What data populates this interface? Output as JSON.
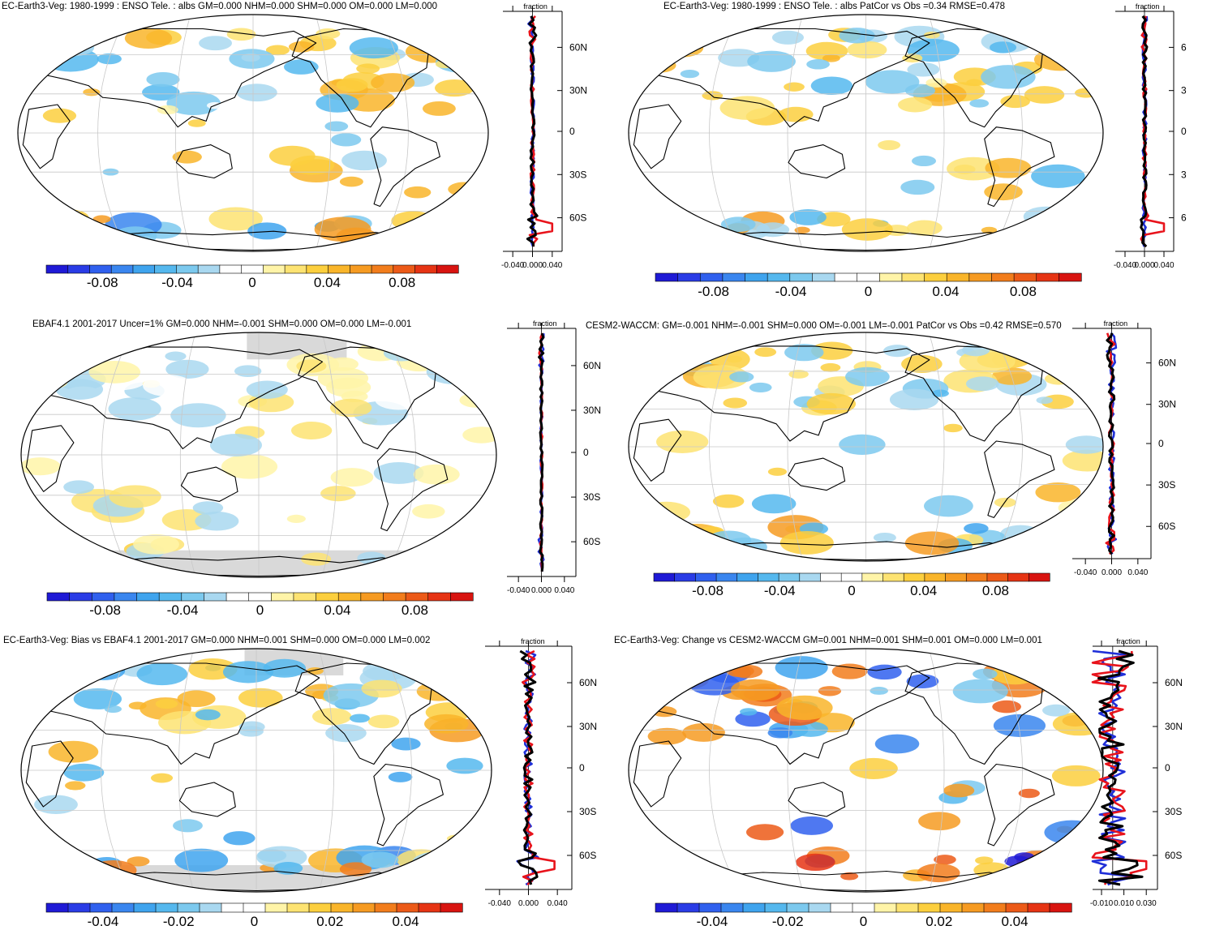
{
  "figure": {
    "background": "#ffffff"
  },
  "chart_data": [
    {
      "type": "heatmap",
      "panel": "top-left",
      "title": "EC-Earth3-Veg: 1980-1999 : ENSO Tele. : albs GM=0.000 NHM=0.000 SHM=0.000 OM=0.000 LM=0.000",
      "colorbar": {
        "ticks": [
          "-0.08",
          "-0.04",
          "0",
          "0.04",
          "0.08"
        ],
        "range": [
          -0.11,
          0.11
        ]
      },
      "profile": {
        "label": "fraction",
        "xticks": [
          "-0.040",
          "0.000",
          "0.040"
        ],
        "xlim": [
          -0.06,
          0.06
        ],
        "yticks": [
          "60N",
          "30N",
          "0",
          "30S",
          "60S"
        ],
        "series": [
          {
            "name": "black",
            "color": "#000000"
          },
          {
            "name": "red",
            "color": "#e8131b"
          },
          {
            "name": "blue",
            "color": "#1f2fd8"
          }
        ]
      }
    },
    {
      "type": "heatmap",
      "panel": "top-right",
      "title": "EC-Earth3-Veg: 1980-1999 : ENSO Tele. : albs PatCor vs Obs =0.34 RMSE=0.478",
      "colorbar": {
        "ticks": [
          "-0.08",
          "-0.04",
          "0",
          "0.04",
          "0.08"
        ],
        "range": [
          -0.11,
          0.11
        ]
      },
      "profile": {
        "label": "fraction",
        "xticks": [
          "-0.040",
          "0.000",
          "0.040"
        ],
        "xlim": [
          -0.06,
          0.06
        ],
        "yticks": [
          "6",
          "3",
          "0",
          "3",
          "6"
        ],
        "series": [
          {
            "name": "black",
            "color": "#000000"
          },
          {
            "name": "red",
            "color": "#e8131b"
          },
          {
            "name": "blue",
            "color": "#1f2fd8"
          }
        ]
      }
    },
    {
      "type": "heatmap",
      "panel": "middle-left",
      "title": "EBAF4.1 2001-2017 Uncer=1% GM=0.000 NHM=-0.001 SHM=0.000 OM=0.000 LM=-0.001",
      "colorbar": {
        "ticks": [
          "-0.08",
          "-0.04",
          "0",
          "0.04",
          "0.08"
        ],
        "range": [
          -0.11,
          0.11
        ]
      },
      "profile": {
        "label": "fraction",
        "xticks": [
          "-0.040",
          "0.000",
          "0.040"
        ],
        "xlim": [
          -0.06,
          0.06
        ],
        "yticks": [
          "60N",
          "30N",
          "0",
          "30S",
          "60S"
        ],
        "series": [
          {
            "name": "black",
            "color": "#000000"
          },
          {
            "name": "red",
            "color": "#e8131b"
          },
          {
            "name": "blue",
            "color": "#1f2fd8"
          }
        ]
      }
    },
    {
      "type": "heatmap",
      "panel": "middle-right",
      "title": "CESM2-WACCM: GM=-0.001 NHM=-0.001 SHM=0.000 OM=-0.001 LM=-0.001 PatCor vs Obs =0.42 RMSE=0.570",
      "colorbar": {
        "ticks": [
          "-0.08",
          "-0.04",
          "0",
          "0.04",
          "0.08"
        ],
        "range": [
          -0.11,
          0.11
        ]
      },
      "profile": {
        "label": "fraction",
        "xticks": [
          "-0.040",
          "0.000",
          "0.040"
        ],
        "xlim": [
          -0.06,
          0.06
        ],
        "yticks": [
          "60N",
          "30N",
          "0",
          "30S",
          "60S"
        ],
        "series": [
          {
            "name": "black",
            "color": "#000000"
          },
          {
            "name": "red",
            "color": "#e8131b"
          },
          {
            "name": "blue",
            "color": "#1f2fd8"
          }
        ]
      }
    },
    {
      "type": "heatmap",
      "panel": "bottom-left",
      "title": "EC-Earth3-Veg: Bias vs EBAF4.1 2001-2017 GM=0.000 NHM=0.001 SHM=0.000 OM=0.000 LM=0.002",
      "colorbar": {
        "ticks": [
          "-0.04",
          "-0.02",
          "0",
          "0.02",
          "0.04"
        ],
        "range": [
          -0.055,
          0.055
        ]
      },
      "profile": {
        "label": "fraction",
        "xticks": [
          "-0.040",
          "0.000",
          "0.040"
        ],
        "xlim": [
          -0.06,
          0.06
        ],
        "yticks": [
          "60N",
          "30N",
          "0",
          "30S",
          "60S"
        ],
        "series": [
          {
            "name": "black",
            "color": "#000000"
          },
          {
            "name": "red",
            "color": "#e8131b"
          },
          {
            "name": "blue",
            "color": "#1f2fd8"
          }
        ]
      }
    },
    {
      "type": "heatmap",
      "panel": "bottom-right",
      "title": "EC-Earth3-Veg: Change vs CESM2-WACCM GM=0.001 NHM=0.001 SHM=0.001 OM=0.000 LM=0.001",
      "colorbar": {
        "ticks": [
          "-0.04",
          "-0.02",
          "0",
          "0.02",
          "0.04"
        ],
        "range": [
          -0.055,
          0.055
        ]
      },
      "profile": {
        "label": "fraction",
        "xticks": [
          "-0.010",
          "0.010",
          "0.030"
        ],
        "xlim": [
          -0.018,
          0.04
        ],
        "yticks": [
          "60N",
          "30N",
          "0",
          "30S",
          "60S"
        ],
        "series": [
          {
            "name": "black",
            "color": "#000000"
          },
          {
            "name": "red",
            "color": "#e8131b"
          },
          {
            "name": "blue",
            "color": "#1f2fd8"
          }
        ]
      }
    }
  ],
  "palette": [
    "#1f1ad6",
    "#2a3ce6",
    "#3060ee",
    "#3a86ef",
    "#3fa4ee",
    "#55b8ee",
    "#7cc9ee",
    "#a9d8f0",
    "#ffffff",
    "#ffffff",
    "#fff4a8",
    "#fde372",
    "#fccf3e",
    "#f9b52a",
    "#f69b22",
    "#f27d1c",
    "#ec5a18",
    "#e63414",
    "#d81410"
  ]
}
